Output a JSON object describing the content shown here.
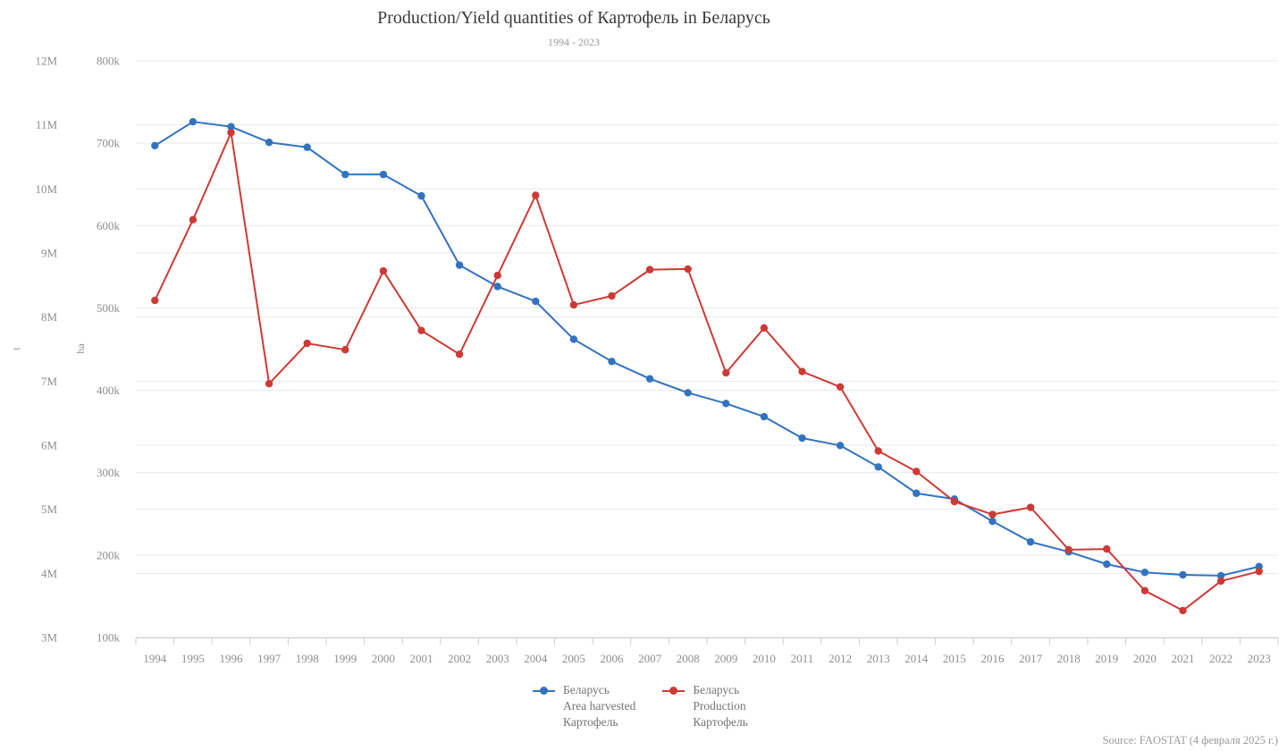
{
  "header": {
    "title": "Production/Yield quantities of Картофель in Беларусь",
    "subtitle": "1994 - 2023"
  },
  "footer": {
    "source": "Source: FAOSTAT (4 февраля 2025 г.)"
  },
  "legend": {
    "items": [
      {
        "lines": [
          "Беларусь",
          "Area harvested",
          "Картофель"
        ],
        "color": "#3273c0"
      },
      {
        "lines": [
          "Беларусь",
          "Production",
          "Картофель"
        ],
        "color": "#cd3a35"
      }
    ]
  },
  "chart_data": {
    "type": "line",
    "title": "Production/Yield quantities of Картофель in Беларусь",
    "subtitle": "1994 - 2023",
    "grid": true,
    "legend_position": "bottom",
    "categories": [
      "1994",
      "1995",
      "1996",
      "1997",
      "1998",
      "1999",
      "2000",
      "2001",
      "2002",
      "2003",
      "2004",
      "2005",
      "2006",
      "2007",
      "2008",
      "2009",
      "2010",
      "2011",
      "2012",
      "2013",
      "2014",
      "2015",
      "2016",
      "2017",
      "2018",
      "2019",
      "2020",
      "2021",
      "2022",
      "2023"
    ],
    "axes": {
      "t": {
        "name": "t",
        "min": 3000000,
        "max": 12000000,
        "tick_values": [
          12000000,
          11000000,
          10000000,
          9000000,
          8000000,
          7000000,
          6000000,
          5000000,
          4000000,
          3000000
        ],
        "tick_labels": [
          "12M",
          "11M",
          "10M",
          "9M",
          "8M",
          "7M",
          "6M",
          "5M",
          "4M",
          "3M"
        ]
      },
      "ha": {
        "name": "ha",
        "min": 100000,
        "max": 800000,
        "tick_values": [
          800000,
          700000,
          600000,
          500000,
          400000,
          300000,
          200000,
          100000
        ],
        "tick_labels": [
          "800k",
          "700k",
          "600k",
          "500k",
          "400k",
          "300k",
          "200k",
          "100k"
        ]
      }
    },
    "series": [
      {
        "name": "Беларусь Area harvested Картофель",
        "axis": "ha",
        "unit": "ha",
        "color": "#3273c0",
        "values": [
          697000,
          726000,
          720000,
          701000,
          695000,
          662000,
          662000,
          636000,
          552000,
          526000,
          508000,
          462000,
          435000,
          414000,
          397000,
          384000,
          368000,
          342000,
          333000,
          307000,
          275000,
          268000,
          241000,
          216000,
          204000,
          189000,
          179000,
          176000,
          175000,
          186000
        ]
      },
      {
        "name": "Беларусь Production Картофель",
        "axis": "t",
        "unit": "t",
        "color": "#cd3a35",
        "values": [
          8260000,
          9520000,
          10880000,
          6960000,
          7590000,
          7490000,
          8720000,
          7790000,
          7420000,
          8650000,
          9900000,
          8190000,
          8330000,
          8740000,
          8750000,
          7130000,
          7830000,
          7150000,
          6910000,
          5910000,
          5590000,
          5120000,
          4920000,
          5030000,
          4370000,
          4380000,
          3730000,
          3420000,
          3880000,
          4030000
        ]
      }
    ],
    "colors": {
      "grid": "#e9e9e9",
      "axis_line": "#cccccc",
      "axis_text": "#8e8e8e"
    }
  }
}
